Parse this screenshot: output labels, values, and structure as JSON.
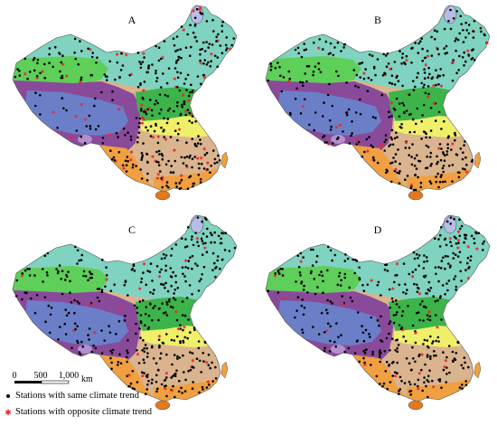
{
  "panels": [
    {
      "label": "A"
    },
    {
      "label": "B"
    },
    {
      "label": "C"
    },
    {
      "label": "D"
    }
  ],
  "scale_bar": {
    "ticks": [
      "0",
      "500",
      "1,000"
    ],
    "unit": "km"
  },
  "legend": {
    "same": "Stations with same climate trend",
    "opposite": "Stations with opposite climate trend"
  },
  "colors": {
    "northeast_teal": "#7fd3c0",
    "northwest_green": "#5ecf58",
    "north_china_green": "#3cb44a",
    "plateau_purple": "#8a4a9a",
    "tibet_blue": "#6b7fc9",
    "yangtze_yellow": "#f0ef6a",
    "south_tan": "#d9b48e",
    "southwest_orange": "#f0a040",
    "hainan_orange": "#e07a20",
    "lake_lavender": "#b7bde6",
    "qinghai_lilac": "#b48fcf",
    "same_trend_dot": "#000000",
    "opposite_trend_star": "#e8282a"
  }
}
